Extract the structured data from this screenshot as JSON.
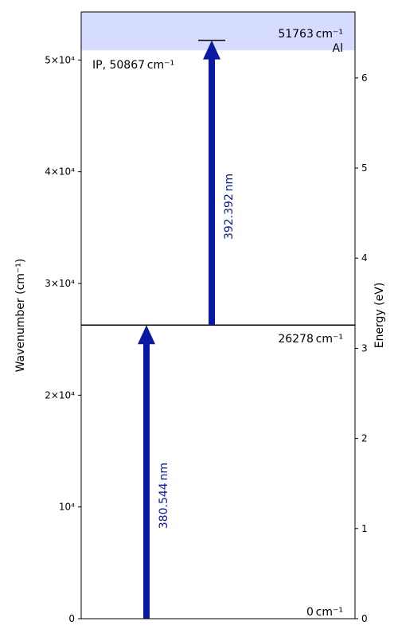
{
  "chart_data": {
    "type": "energy-level-diagram",
    "element": "Al",
    "xlabel": "",
    "ylabel_left": "Wavenumber (cm⁻¹)",
    "ylabel_right": "Energy (eV)",
    "ylim_left": [
      0,
      54300
    ],
    "ylim_right": [
      0,
      6.732
    ],
    "left_ticks": [
      {
        "value": 0,
        "label": "0"
      },
      {
        "value": 10000,
        "label": "10⁴"
      },
      {
        "value": 20000,
        "label": "2×10⁴"
      },
      {
        "value": 30000,
        "label": "3×10⁴"
      },
      {
        "value": 40000,
        "label": "4×10⁴"
      },
      {
        "value": 50000,
        "label": "5×10⁴"
      }
    ],
    "right_ticks": [
      0,
      1,
      2,
      3,
      4,
      5,
      6
    ],
    "levels": [
      {
        "wavenumber": 0,
        "label": "0 cm⁻¹"
      },
      {
        "wavenumber": 26278,
        "label": "26278 cm⁻¹"
      },
      {
        "wavenumber": 51763,
        "label": "51763 cm⁻¹"
      }
    ],
    "ionization": {
      "wavenumber": 50867,
      "label": "IP, 50867 cm⁻¹",
      "color": "#d6dcff"
    },
    "transitions": [
      {
        "from": 0,
        "to": 26278,
        "wavelength_label": "380.544 nm",
        "position": "left"
      },
      {
        "from": 26278,
        "to": 51763,
        "wavelength_label": "392.392 nm",
        "position": "right"
      }
    ],
    "colors": {
      "arrow": "#0a19a3",
      "axis": "#000000",
      "ionization_band": "#d6dcff"
    }
  }
}
